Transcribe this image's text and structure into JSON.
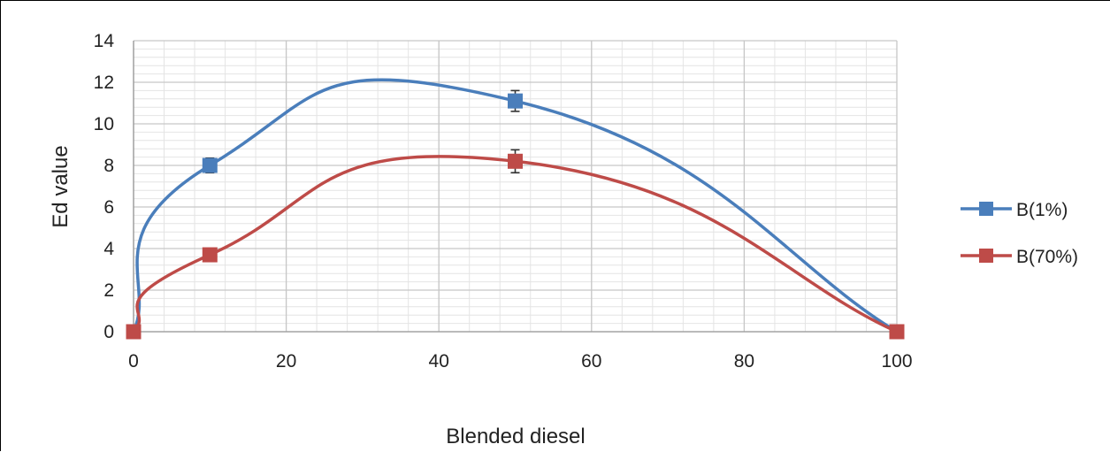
{
  "chart_data": {
    "type": "line",
    "xlabel": "Blended diesel",
    "ylabel": "Ed value",
    "xlim": [
      0,
      100
    ],
    "ylim": [
      0,
      14
    ],
    "x_ticks": [
      0,
      20,
      40,
      60,
      80,
      100
    ],
    "y_ticks": [
      0,
      2,
      4,
      6,
      8,
      10,
      12,
      14
    ],
    "grid": true,
    "legend_position": "right",
    "series": [
      {
        "name": "B(1%)",
        "color": "#4a7ebb",
        "x": [
          0,
          10,
          50,
          100
        ],
        "y": [
          0,
          8.0,
          11.1,
          0
        ],
        "error": [
          0,
          0.35,
          0.5,
          0
        ]
      },
      {
        "name": "B(70%)",
        "color": "#be4b48",
        "x": [
          0,
          10,
          50,
          100
        ],
        "y": [
          0,
          3.7,
          8.2,
          0
        ],
        "error": [
          0,
          0,
          0.55,
          0
        ]
      }
    ]
  }
}
